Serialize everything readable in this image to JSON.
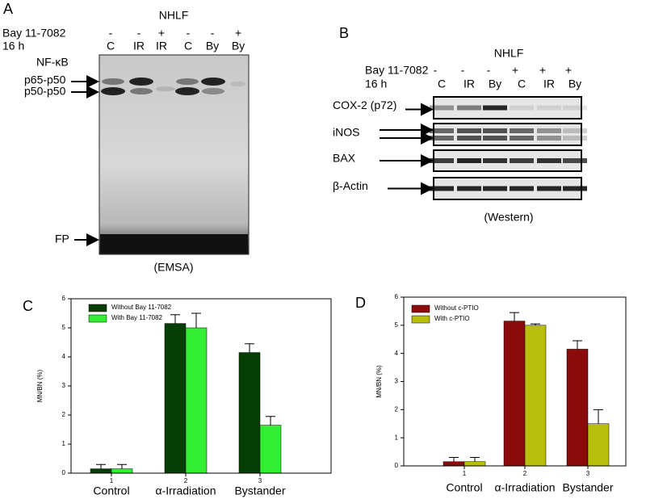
{
  "panels": {
    "A": {
      "panel": "A",
      "title": "NHLF",
      "row_labels": [
        "Bay 11-7082",
        "16 h"
      ],
      "treatment": [
        "-",
        "-",
        "+",
        "-",
        "-",
        "+"
      ],
      "lanes": [
        "C",
        "IR",
        "IR",
        "C",
        "By",
        "By"
      ],
      "complex_label": "NF-κB",
      "bands": [
        "p65-p50",
        "p50-p50"
      ],
      "probe": "FP",
      "assay": "(EMSA)"
    },
    "B": {
      "panel": "B",
      "title": "NHLF",
      "row_labels": [
        "Bay 11-7082",
        "16 h"
      ],
      "treatment": [
        "-",
        "-",
        "-",
        "+",
        "+",
        "+"
      ],
      "lanes": [
        "C",
        "IR",
        "By",
        "C",
        "IR",
        "By"
      ],
      "blots": [
        "COX-2 (p72)",
        "iNOS",
        "BAX",
        "β-Actin"
      ],
      "assay": "(Western)"
    }
  },
  "chart_data": [
    {
      "type": "bar",
      "panel": "C",
      "ylabel": "MN/BN (%)",
      "categories": [
        "1",
        "2",
        "3"
      ],
      "group_labels": [
        "Control",
        "α-Irradiation",
        "Bystander"
      ],
      "series": [
        {
          "name": "Without Bay 11-7082",
          "color": "#063f06",
          "values": [
            0.15,
            5.15,
            4.15
          ],
          "errors": [
            0.15,
            0.3,
            0.3
          ]
        },
        {
          "name": "With Bay 11-7082",
          "color": "#33ee33",
          "values": [
            0.15,
            5.0,
            1.65
          ],
          "errors": [
            0.15,
            0.5,
            0.3
          ]
        }
      ],
      "ylim": [
        0,
        6
      ],
      "yticks": [
        0,
        1,
        2,
        3,
        4,
        5,
        6
      ]
    },
    {
      "type": "bar",
      "panel": "D",
      "ylabel": "MN/BN (%)",
      "categories": [
        "1",
        "2",
        "3"
      ],
      "group_labels": [
        "Control",
        "α-Irradiation",
        "Bystander"
      ],
      "series": [
        {
          "name": "Without c-PTIO",
          "color": "#8b0a0a",
          "values": [
            0.15,
            5.15,
            4.15
          ],
          "errors": [
            0.15,
            0.3,
            0.3
          ]
        },
        {
          "name": "With c-PTIO",
          "color": "#b8be0a",
          "values": [
            0.15,
            5.0,
            1.5
          ],
          "errors": [
            0.15,
            0.05,
            0.5
          ]
        }
      ],
      "ylim": [
        0,
        6
      ],
      "yticks": [
        0,
        1,
        2,
        3,
        4,
        5,
        6
      ]
    }
  ]
}
